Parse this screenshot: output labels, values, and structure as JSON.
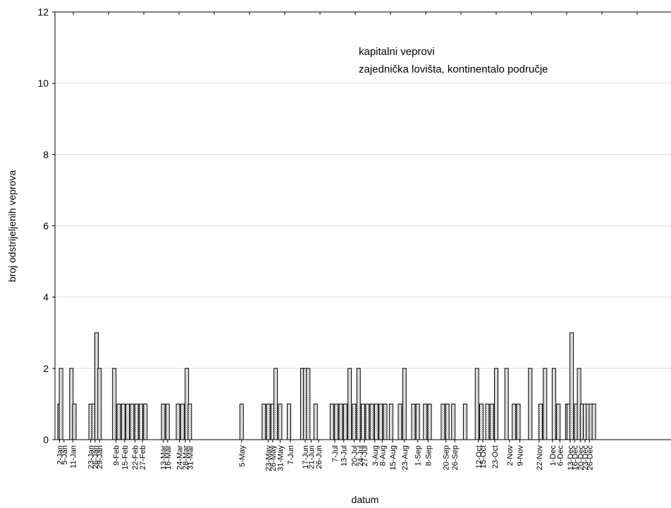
{
  "chart_data": {
    "type": "bar",
    "xlabel": "datum",
    "ylabel": "broj odstrijeljenih veprova",
    "ylim": [
      0,
      12
    ],
    "yticks": [
      0,
      2,
      4,
      6,
      8,
      10,
      12
    ],
    "grid": "horizontal",
    "annotations": [
      "kapitalni veprovi",
      "zajednička lovišta, kontinentalo područje"
    ],
    "categories": [
      "2-Jan",
      "5-Jan",
      "11-Jan",
      "23-Jan",
      "26-Jan",
      "29-Jan",
      "9-Feb",
      "15-Feb",
      "22-Feb",
      "27-Feb",
      "13-Mar",
      "16-Mar",
      "24-Mar",
      "28-Mar",
      "31-Mar",
      "5-May",
      "23-May",
      "26-May",
      "31-May",
      "7-Jun",
      "17-Jun",
      "21-Jun",
      "26-Jun",
      "7-Jul",
      "13-Jul",
      "20-Jul",
      "24-Jul",
      "27-Jul",
      "3-Aug",
      "8-Aug",
      "15-Aug",
      "23-Aug",
      "1-Sep",
      "8-Sep",
      "20-Sep",
      "26-Sep",
      "12-Oct",
      "15-Oct",
      "23-Oct",
      "2-Nov",
      "9-Nov",
      "22-Nov",
      "1-Dec",
      "6-Dec",
      "13-Dec",
      "16-Dec",
      "20-Dec",
      "23-Dec",
      "26-Dec"
    ],
    "bars": [
      {
        "x": "2-Jan",
        "y": 1
      },
      {
        "x": "3-Jan",
        "y": 2
      },
      {
        "x": "10-Jan",
        "y": 2
      },
      {
        "x": "12-Jan",
        "y": 1
      },
      {
        "x": "23-Jan",
        "y": 1
      },
      {
        "x": "25-Jan",
        "y": 1
      },
      {
        "x": "27-Jan",
        "y": 3
      },
      {
        "x": "29-Jan",
        "y": 2
      },
      {
        "x": "8-Feb",
        "y": 2
      },
      {
        "x": "11-Feb",
        "y": 1
      },
      {
        "x": "14-Feb",
        "y": 1
      },
      {
        "x": "17-Feb",
        "y": 1
      },
      {
        "x": "20-Feb",
        "y": 1
      },
      {
        "x": "23-Feb",
        "y": 1
      },
      {
        "x": "26-Feb",
        "y": 1
      },
      {
        "x": "1-Mar",
        "y": 1
      },
      {
        "x": "13-Mar",
        "y": 1
      },
      {
        "x": "16-Mar",
        "y": 1
      },
      {
        "x": "23-Mar",
        "y": 1
      },
      {
        "x": "26-Mar",
        "y": 1
      },
      {
        "x": "29-Mar",
        "y": 2
      },
      {
        "x": "31-Mar",
        "y": 1
      },
      {
        "x": "5-May",
        "y": 1
      },
      {
        "x": "20-May",
        "y": 1
      },
      {
        "x": "23-May",
        "y": 1
      },
      {
        "x": "26-May",
        "y": 1
      },
      {
        "x": "28-May",
        "y": 2
      },
      {
        "x": "31-May",
        "y": 1
      },
      {
        "x": "6-Jun",
        "y": 1
      },
      {
        "x": "15-Jun",
        "y": 2
      },
      {
        "x": "17-Jun",
        "y": 2
      },
      {
        "x": "19-Jun",
        "y": 2
      },
      {
        "x": "24-Jun",
        "y": 1
      },
      {
        "x": "5-Jul",
        "y": 1
      },
      {
        "x": "8-Jul",
        "y": 1
      },
      {
        "x": "11-Jul",
        "y": 1
      },
      {
        "x": "14-Jul",
        "y": 1
      },
      {
        "x": "17-Jul",
        "y": 2
      },
      {
        "x": "20-Jul",
        "y": 1
      },
      {
        "x": "23-Jul",
        "y": 2
      },
      {
        "x": "26-Jul",
        "y": 1
      },
      {
        "x": "29-Jul",
        "y": 1
      },
      {
        "x": "1-Aug",
        "y": 1
      },
      {
        "x": "4-Aug",
        "y": 1
      },
      {
        "x": "7-Aug",
        "y": 1
      },
      {
        "x": "10-Aug",
        "y": 1
      },
      {
        "x": "14-Aug",
        "y": 1
      },
      {
        "x": "20-Aug",
        "y": 1
      },
      {
        "x": "23-Aug",
        "y": 2
      },
      {
        "x": "29-Aug",
        "y": 1
      },
      {
        "x": "1-Sep",
        "y": 1
      },
      {
        "x": "6-Sep",
        "y": 1
      },
      {
        "x": "9-Sep",
        "y": 1
      },
      {
        "x": "18-Sep",
        "y": 1
      },
      {
        "x": "21-Sep",
        "y": 1
      },
      {
        "x": "25-Sep",
        "y": 1
      },
      {
        "x": "3-Oct",
        "y": 1
      },
      {
        "x": "11-Oct",
        "y": 2
      },
      {
        "x": "14-Oct",
        "y": 1
      },
      {
        "x": "18-Oct",
        "y": 1
      },
      {
        "x": "21-Oct",
        "y": 1
      },
      {
        "x": "24-Oct",
        "y": 2
      },
      {
        "x": "31-Oct",
        "y": 2
      },
      {
        "x": "5-Nov",
        "y": 1
      },
      {
        "x": "8-Nov",
        "y": 1
      },
      {
        "x": "16-Nov",
        "y": 2
      },
      {
        "x": "23-Nov",
        "y": 1
      },
      {
        "x": "26-Nov",
        "y": 2
      },
      {
        "x": "2-Dec",
        "y": 2
      },
      {
        "x": "5-Dec",
        "y": 1
      },
      {
        "x": "11-Dec",
        "y": 1
      },
      {
        "x": "12-Dec",
        "y": 1
      },
      {
        "x": "14-Dec",
        "y": 3
      },
      {
        "x": "17-Dec",
        "y": 1
      },
      {
        "x": "19-Dec",
        "y": 2
      },
      {
        "x": "21-Dec",
        "y": 1
      },
      {
        "x": "23-Dec",
        "y": 1
      },
      {
        "x": "25-Dec",
        "y": 1
      },
      {
        "x": "27-Dec",
        "y": 1
      },
      {
        "x": "29-Dec",
        "y": 1
      }
    ]
  }
}
